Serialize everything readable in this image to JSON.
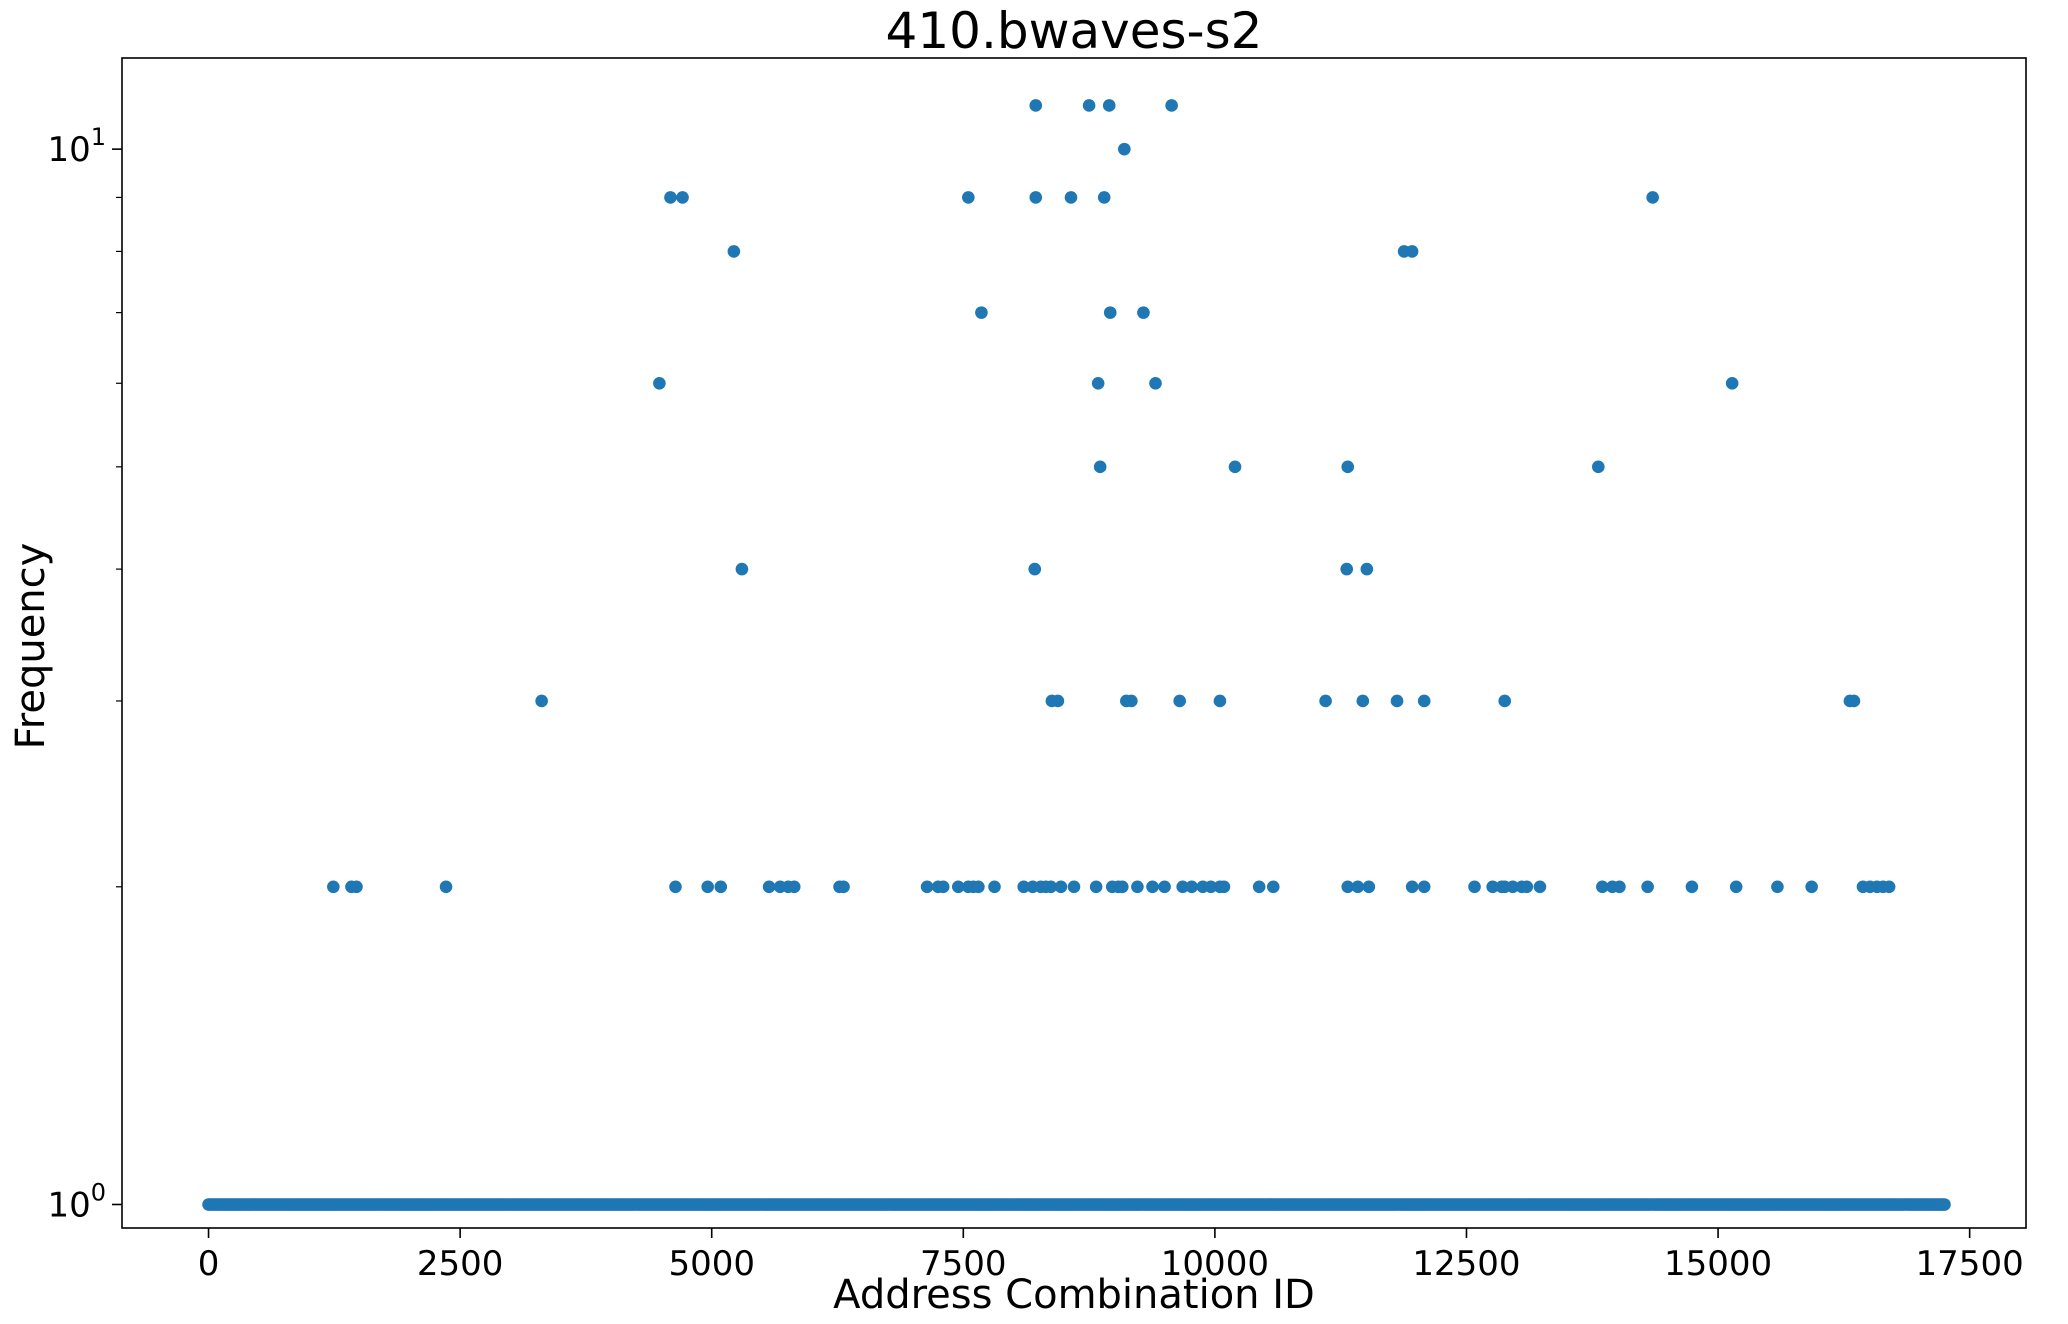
{
  "chart_data": {
    "type": "scatter",
    "title": "410.bwaves-s2",
    "xlabel": "Address Combination ID",
    "ylabel": "Frequency",
    "y_scale": "log",
    "xlim": [
      -860,
      18060
    ],
    "ylim": [
      0.95,
      12.2
    ],
    "grid": false,
    "x_ticks": [
      0,
      2500,
      5000,
      7500,
      10000,
      12500,
      15000,
      17500
    ],
    "x_tick_labels": [
      "0",
      "2500",
      "5000",
      "7500",
      "10000",
      "12500",
      "15000",
      "17500"
    ],
    "y_ticks": [
      1,
      10
    ],
    "y_tick_labels": [
      {
        "base": "10",
        "exp": "0"
      },
      {
        "base": "10",
        "exp": "1"
      }
    ],
    "marker_color": "#1f77b4",
    "baseline": {
      "y": 1,
      "x_start": 0,
      "x_end": 17250,
      "step": 15
    },
    "points": [
      [
        8220,
        11
      ],
      [
        8750,
        11
      ],
      [
        8950,
        11
      ],
      [
        9570,
        11
      ],
      [
        9100,
        10
      ],
      [
        4590,
        9
      ],
      [
        4710,
        9
      ],
      [
        7550,
        9
      ],
      [
        8220,
        9
      ],
      [
        8570,
        9
      ],
      [
        8900,
        9
      ],
      [
        14350,
        9
      ],
      [
        5220,
        8
      ],
      [
        11880,
        8
      ],
      [
        11960,
        8
      ],
      [
        7680,
        7
      ],
      [
        8960,
        7
      ],
      [
        9290,
        7
      ],
      [
        4480,
        6
      ],
      [
        8840,
        6
      ],
      [
        9410,
        6
      ],
      [
        15140,
        6
      ],
      [
        8860,
        5
      ],
      [
        10200,
        5
      ],
      [
        11320,
        5
      ],
      [
        13810,
        5
      ],
      [
        5300,
        4
      ],
      [
        8210,
        4
      ],
      [
        11310,
        4
      ],
      [
        11510,
        4
      ],
      [
        3310,
        3
      ],
      [
        8380,
        3
      ],
      [
        8440,
        3
      ],
      [
        9120,
        3
      ],
      [
        9170,
        3
      ],
      [
        9650,
        3
      ],
      [
        10050,
        3
      ],
      [
        11100,
        3
      ],
      [
        11470,
        3
      ],
      [
        11810,
        3
      ],
      [
        12080,
        3
      ],
      [
        12880,
        3
      ],
      [
        16310,
        3
      ],
      [
        16350,
        3
      ],
      [
        1240,
        2
      ],
      [
        1420,
        2
      ],
      [
        1470,
        2
      ],
      [
        2360,
        2
      ],
      [
        4640,
        2
      ],
      [
        4960,
        2
      ],
      [
        5090,
        2
      ],
      [
        5570,
        2
      ],
      [
        5680,
        2
      ],
      [
        5760,
        2
      ],
      [
        5820,
        2
      ],
      [
        6270,
        2
      ],
      [
        6310,
        2
      ],
      [
        7140,
        2
      ],
      [
        7250,
        2
      ],
      [
        7300,
        2
      ],
      [
        7450,
        2
      ],
      [
        7550,
        2
      ],
      [
        7600,
        2
      ],
      [
        7650,
        2
      ],
      [
        7810,
        2
      ],
      [
        8100,
        2
      ],
      [
        8190,
        2
      ],
      [
        8270,
        2
      ],
      [
        8320,
        2
      ],
      [
        8370,
        2
      ],
      [
        8470,
        2
      ],
      [
        8600,
        2
      ],
      [
        8820,
        2
      ],
      [
        8980,
        2
      ],
      [
        9040,
        2
      ],
      [
        9080,
        2
      ],
      [
        9230,
        2
      ],
      [
        9380,
        2
      ],
      [
        9500,
        2
      ],
      [
        9680,
        2
      ],
      [
        9770,
        2
      ],
      [
        9880,
        2
      ],
      [
        9960,
        2
      ],
      [
        10050,
        2
      ],
      [
        10090,
        2
      ],
      [
        10440,
        2
      ],
      [
        10580,
        2
      ],
      [
        11320,
        2
      ],
      [
        11420,
        2
      ],
      [
        11530,
        2
      ],
      [
        11960,
        2
      ],
      [
        12080,
        2
      ],
      [
        12580,
        2
      ],
      [
        12760,
        2
      ],
      [
        12850,
        2
      ],
      [
        12880,
        2
      ],
      [
        12960,
        2
      ],
      [
        13050,
        2
      ],
      [
        13100,
        2
      ],
      [
        13230,
        2
      ],
      [
        13850,
        2
      ],
      [
        13950,
        2
      ],
      [
        14020,
        2
      ],
      [
        14300,
        2
      ],
      [
        14740,
        2
      ],
      [
        15180,
        2
      ],
      [
        15590,
        2
      ],
      [
        15930,
        2
      ],
      [
        16440,
        2
      ],
      [
        16510,
        2
      ],
      [
        16580,
        2
      ],
      [
        16640,
        2
      ],
      [
        16700,
        2
      ]
    ]
  }
}
